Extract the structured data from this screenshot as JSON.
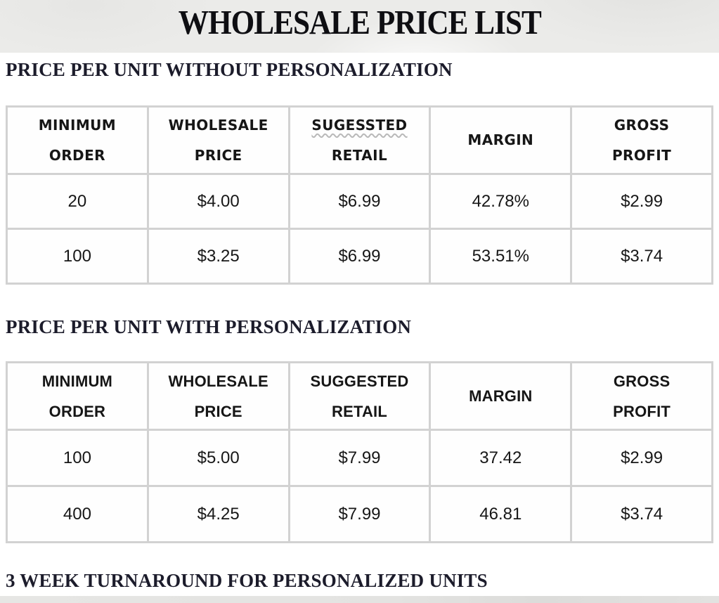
{
  "page": {
    "title": "WHOLESALE PRICE LIST",
    "footer_note": "3 WEEK TURNAROUND FOR PERSONALIZED UNITS"
  },
  "colors": {
    "banner_bg": "#ebebe9",
    "table_border": "#d2d2d2",
    "heading_text": "#1c1c2b",
    "footer_bar": "#e0e0de",
    "squiggle": "#b9b9b9"
  },
  "sections": [
    {
      "heading": "PRICE PER UNIT WITHOUT PERSONALIZATION",
      "table": {
        "headers": [
          [
            "MINIMUM",
            "ORDER"
          ],
          [
            "WHOLESALE",
            "PRICE"
          ],
          [
            "SUGESSTED",
            "RETAIL"
          ],
          [
            "MARGIN"
          ],
          [
            "GROSS",
            "PROFIT"
          ]
        ],
        "misspelled_header_word": "SUGESSTED",
        "rows": [
          [
            "20",
            "$4.00",
            "$6.99",
            "42.78%",
            "$2.99"
          ],
          [
            "100",
            "$3.25",
            "$6.99",
            "53.51%",
            "$3.74"
          ]
        ]
      }
    },
    {
      "heading": "PRICE PER UNIT WITH PERSONALIZATION",
      "table": {
        "headers": [
          [
            "MINIMUM",
            "ORDER"
          ],
          [
            "WHOLESALE",
            "PRICE"
          ],
          [
            "SUGGESTED",
            "RETAIL"
          ],
          [
            "MARGIN"
          ],
          [
            "GROSS",
            "PROFIT"
          ]
        ],
        "rows": [
          [
            "100",
            "$5.00",
            "$7.99",
            "37.42",
            "$2.99"
          ],
          [
            "400",
            "$4.25",
            "$7.99",
            "46.81",
            "$3.74"
          ]
        ]
      }
    }
  ]
}
